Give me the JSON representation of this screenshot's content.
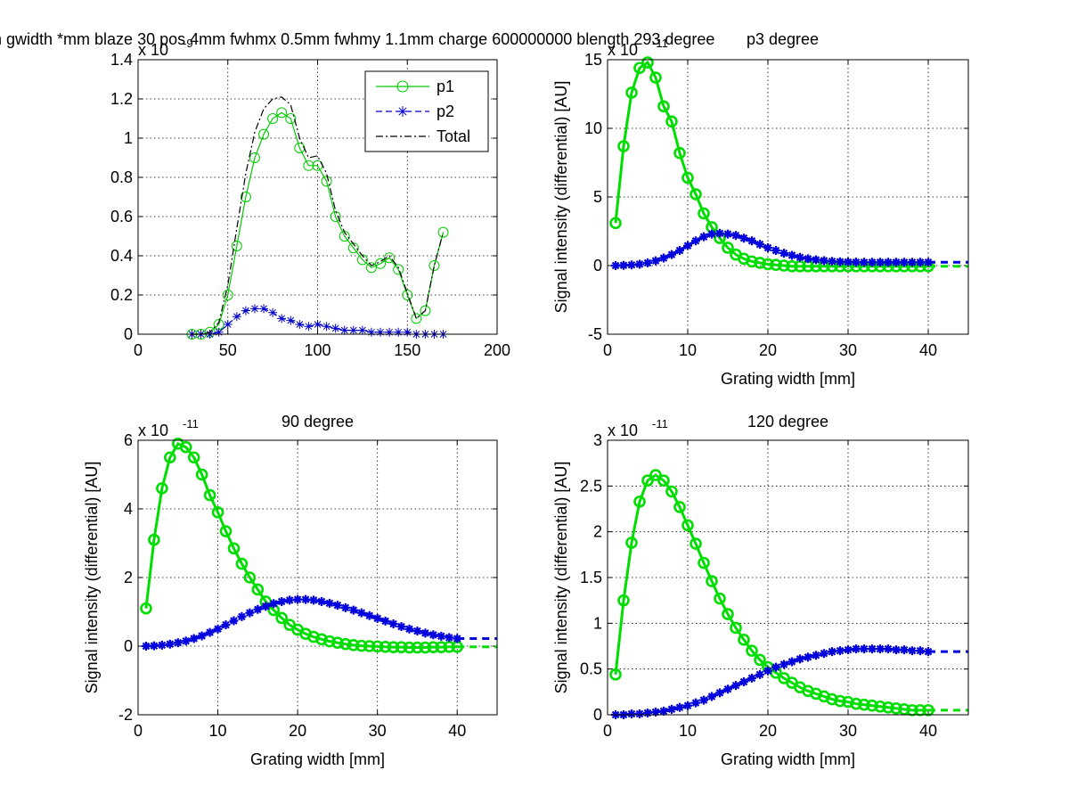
{
  "figure": {
    "suptitle": "n gwidth *mm blaze 30 pos 4mm fwhmx 0.5mm fwhmy 1.1mm charge 600000000 blength 293 degree",
    "overlap_text": "p3 degree"
  },
  "chart_data": [
    {
      "id": "ax1",
      "type": "line",
      "title": "",
      "xlabel": "",
      "ylabel": "",
      "exponent_label": "x 10",
      "exponent_power": "-9",
      "xlim": [
        0,
        200
      ],
      "ylim": [
        0,
        1.4
      ],
      "xticks": [
        0,
        50,
        100,
        150,
        200
      ],
      "yticks": [
        0,
        0.2,
        0.4,
        0.6,
        0.8,
        1,
        1.2,
        1.4
      ],
      "legend": {
        "position": "top-right",
        "entries": [
          "p1",
          "p2",
          "Total"
        ]
      },
      "series": [
        {
          "name": "p1",
          "color": "#00cc00",
          "line": "solid",
          "marker": "circle",
          "x": [
            30,
            35,
            40,
            45,
            50,
            55,
            60,
            65,
            70,
            75,
            80,
            85,
            90,
            95,
            100,
            105,
            110,
            115,
            120,
            125,
            130,
            135,
            140,
            145,
            150,
            155,
            160,
            165,
            170
          ],
          "y": [
            0,
            0,
            0.01,
            0.05,
            0.2,
            0.45,
            0.7,
            0.9,
            1.02,
            1.1,
            1.13,
            1.1,
            0.95,
            0.86,
            0.86,
            0.78,
            0.6,
            0.5,
            0.44,
            0.38,
            0.34,
            0.36,
            0.39,
            0.33,
            0.2,
            0.08,
            0.12,
            0.35,
            0.52
          ]
        },
        {
          "name": "p2",
          "color": "#0000cc",
          "line": "dashed",
          "marker": "star",
          "x": [
            30,
            35,
            40,
            45,
            50,
            55,
            60,
            65,
            70,
            75,
            80,
            85,
            90,
            95,
            100,
            105,
            110,
            115,
            120,
            125,
            130,
            135,
            140,
            145,
            150,
            155,
            160,
            165,
            170
          ],
          "y": [
            0,
            0,
            0,
            0.01,
            0.05,
            0.09,
            0.12,
            0.13,
            0.13,
            0.11,
            0.08,
            0.07,
            0.05,
            0.04,
            0.05,
            0.04,
            0.03,
            0.02,
            0.02,
            0.02,
            0.01,
            0.01,
            0.01,
            0.01,
            0.01,
            0,
            0,
            0,
            0
          ]
        },
        {
          "name": "Total",
          "color": "#000000",
          "line": "dashdot",
          "marker": "none",
          "x": [
            30,
            35,
            40,
            45,
            50,
            55,
            60,
            65,
            70,
            75,
            80,
            85,
            90,
            95,
            100,
            105,
            110,
            115,
            120,
            125,
            130,
            135,
            140,
            145,
            150,
            155,
            160,
            165,
            170
          ],
          "y": [
            0,
            0,
            0.01,
            0.06,
            0.25,
            0.54,
            0.82,
            1.03,
            1.15,
            1.2,
            1.21,
            1.17,
            1.0,
            0.9,
            0.91,
            0.82,
            0.63,
            0.52,
            0.46,
            0.4,
            0.35,
            0.37,
            0.4,
            0.34,
            0.21,
            0.08,
            0.12,
            0.35,
            0.52
          ]
        }
      ]
    },
    {
      "id": "ax2",
      "type": "line",
      "title": "p3 degree",
      "xlabel": "Grating width [mm]",
      "ylabel": "Signal intensity (differential) [AU]",
      "exponent_label": "x 10",
      "exponent_power": "-11",
      "xlim": [
        0,
        45
      ],
      "ylim": [
        -5,
        15
      ],
      "xticks": [
        0,
        10,
        20,
        30,
        40
      ],
      "yticks": [
        -5,
        0,
        5,
        10,
        15
      ],
      "series": [
        {
          "name": "p1",
          "color": "#00dd00",
          "line": "solid",
          "marker": "circle",
          "tail_to": 45,
          "x": [
            1,
            2,
            3,
            4,
            5,
            6,
            7,
            8,
            9,
            10,
            11,
            12,
            13,
            14,
            15,
            16,
            17,
            18,
            19,
            20,
            21,
            22,
            23,
            24,
            25,
            26,
            27,
            28,
            29,
            30,
            31,
            32,
            33,
            34,
            35,
            36,
            37,
            38,
            39,
            40
          ],
          "y": [
            3.1,
            8.7,
            12.6,
            14.4,
            14.8,
            13.7,
            11.6,
            10.5,
            8.2,
            6.4,
            5.2,
            3.8,
            2.8,
            2.0,
            1.3,
            0.8,
            0.5,
            0.3,
            0.2,
            0.1,
            0.05,
            0,
            -0.05,
            -0.05,
            -0.05,
            -0.05,
            -0.05,
            -0.05,
            -0.05,
            -0.05,
            -0.05,
            -0.05,
            -0.05,
            -0.05,
            -0.05,
            -0.05,
            -0.05,
            -0.05,
            -0.05,
            -0.05
          ]
        },
        {
          "name": "p2",
          "color": "#0000dd",
          "line": "dashed",
          "marker": "star",
          "tail_to": 45,
          "x": [
            1,
            2,
            3,
            4,
            5,
            6,
            7,
            8,
            9,
            10,
            11,
            12,
            13,
            14,
            15,
            16,
            17,
            18,
            19,
            20,
            21,
            22,
            23,
            24,
            25,
            26,
            27,
            28,
            29,
            30,
            31,
            32,
            33,
            34,
            35,
            36,
            37,
            38,
            39,
            40
          ],
          "y": [
            0,
            0.02,
            0.05,
            0.1,
            0.2,
            0.35,
            0.55,
            0.8,
            1.1,
            1.45,
            1.8,
            2.1,
            2.3,
            2.35,
            2.3,
            2.2,
            2.0,
            1.8,
            1.55,
            1.3,
            1.1,
            0.9,
            0.75,
            0.6,
            0.5,
            0.42,
            0.36,
            0.31,
            0.28,
            0.26,
            0.25,
            0.24,
            0.24,
            0.24,
            0.24,
            0.24,
            0.24,
            0.24,
            0.24,
            0.24
          ]
        }
      ]
    },
    {
      "id": "ax3",
      "type": "line",
      "title": "90 degree",
      "xlabel": "Grating width [mm]",
      "ylabel": "Signal intensity (differential) [AU]",
      "exponent_label": "x 10",
      "exponent_power": "-11",
      "xlim": [
        0,
        45
      ],
      "ylim": [
        -2,
        6
      ],
      "xticks": [
        0,
        10,
        20,
        30,
        40
      ],
      "yticks": [
        -2,
        0,
        2,
        4,
        6
      ],
      "series": [
        {
          "name": "p1",
          "color": "#00dd00",
          "line": "solid",
          "marker": "circle",
          "tail_to": 45,
          "x": [
            1,
            2,
            3,
            4,
            5,
            6,
            7,
            8,
            9,
            10,
            11,
            12,
            13,
            14,
            15,
            16,
            17,
            18,
            19,
            20,
            21,
            22,
            23,
            24,
            25,
            26,
            27,
            28,
            29,
            30,
            31,
            32,
            33,
            34,
            35,
            36,
            37,
            38,
            39,
            40
          ],
          "y": [
            1.1,
            3.1,
            4.6,
            5.5,
            5.9,
            5.8,
            5.5,
            5.0,
            4.4,
            3.9,
            3.35,
            2.85,
            2.4,
            2.0,
            1.65,
            1.3,
            1.05,
            0.82,
            0.62,
            0.48,
            0.36,
            0.27,
            0.2,
            0.14,
            0.1,
            0.06,
            0.03,
            0.01,
            0,
            -0.01,
            -0.02,
            -0.03,
            -0.03,
            -0.04,
            -0.04,
            -0.04,
            -0.03,
            -0.03,
            -0.02,
            -0.02
          ]
        },
        {
          "name": "p2",
          "color": "#0000dd",
          "line": "dashed",
          "marker": "star",
          "tail_to": 45,
          "x": [
            1,
            2,
            3,
            4,
            5,
            6,
            7,
            8,
            9,
            10,
            11,
            12,
            13,
            14,
            15,
            16,
            17,
            18,
            19,
            20,
            21,
            22,
            23,
            24,
            25,
            26,
            27,
            28,
            29,
            30,
            31,
            32,
            33,
            34,
            35,
            36,
            37,
            38,
            39,
            40
          ],
          "y": [
            0,
            0.01,
            0.03,
            0.06,
            0.1,
            0.15,
            0.22,
            0.3,
            0.4,
            0.5,
            0.62,
            0.74,
            0.86,
            0.97,
            1.07,
            1.16,
            1.24,
            1.3,
            1.34,
            1.36,
            1.36,
            1.34,
            1.3,
            1.25,
            1.19,
            1.12,
            1.05,
            0.97,
            0.89,
            0.81,
            0.73,
            0.65,
            0.57,
            0.5,
            0.44,
            0.38,
            0.33,
            0.29,
            0.25,
            0.22
          ]
        }
      ]
    },
    {
      "id": "ax4",
      "type": "line",
      "title": "120 degree",
      "xlabel": "Grating width [mm]",
      "ylabel": "Signal intensity (differential) [AU]",
      "exponent_label": "x 10",
      "exponent_power": "-11",
      "xlim": [
        0,
        45
      ],
      "ylim": [
        0,
        3
      ],
      "xticks": [
        0,
        10,
        20,
        30,
        40
      ],
      "yticks": [
        0,
        0.5,
        1,
        1.5,
        2,
        2.5,
        3
      ],
      "series": [
        {
          "name": "p1",
          "color": "#00dd00",
          "line": "solid",
          "marker": "circle",
          "tail_to": 45,
          "x": [
            1,
            2,
            3,
            4,
            5,
            6,
            7,
            8,
            9,
            10,
            11,
            12,
            13,
            14,
            15,
            16,
            17,
            18,
            19,
            20,
            21,
            22,
            23,
            24,
            25,
            26,
            27,
            28,
            29,
            30,
            31,
            32,
            33,
            34,
            35,
            36,
            37,
            38,
            39,
            40
          ],
          "y": [
            0.44,
            1.25,
            1.88,
            2.33,
            2.56,
            2.62,
            2.56,
            2.44,
            2.27,
            2.07,
            1.87,
            1.66,
            1.46,
            1.27,
            1.1,
            0.95,
            0.82,
            0.7,
            0.6,
            0.52,
            0.46,
            0.4,
            0.35,
            0.3,
            0.26,
            0.23,
            0.2,
            0.17,
            0.15,
            0.14,
            0.12,
            0.11,
            0.1,
            0.09,
            0.08,
            0.07,
            0.06,
            0.05,
            0.05,
            0.05
          ]
        },
        {
          "name": "p2",
          "color": "#0000dd",
          "line": "dashed",
          "marker": "star",
          "tail_to": 45,
          "x": [
            1,
            2,
            3,
            4,
            5,
            6,
            7,
            8,
            9,
            10,
            11,
            12,
            13,
            14,
            15,
            16,
            17,
            18,
            19,
            20,
            21,
            22,
            23,
            24,
            25,
            26,
            27,
            28,
            29,
            30,
            31,
            32,
            33,
            34,
            35,
            36,
            37,
            38,
            39,
            40
          ],
          "y": [
            0,
            0,
            0.01,
            0.01,
            0.02,
            0.03,
            0.04,
            0.06,
            0.08,
            0.1,
            0.13,
            0.16,
            0.2,
            0.24,
            0.28,
            0.32,
            0.36,
            0.4,
            0.44,
            0.48,
            0.52,
            0.55,
            0.58,
            0.61,
            0.63,
            0.65,
            0.67,
            0.69,
            0.7,
            0.71,
            0.72,
            0.72,
            0.72,
            0.72,
            0.72,
            0.71,
            0.71,
            0.7,
            0.7,
            0.69
          ]
        }
      ]
    }
  ]
}
